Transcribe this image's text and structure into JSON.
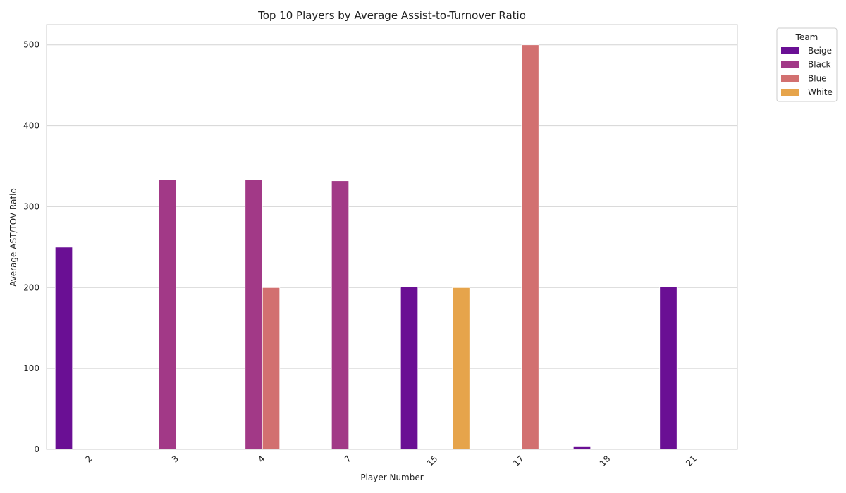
{
  "chart_data": {
    "type": "bar",
    "title": "Top 10 Players by Average Assist-to-Turnover Ratio",
    "xlabel": "Player Number",
    "ylabel": "Average AST/TOV Ratio",
    "categories": [
      "2",
      "3",
      "4",
      "7",
      "15",
      "17",
      "18",
      "21"
    ],
    "ylim": [
      0,
      525
    ],
    "yticks": [
      0,
      100,
      200,
      300,
      400,
      500
    ],
    "grid": true,
    "legend": {
      "title": "Team",
      "placement": "outside-top-right"
    },
    "series": [
      {
        "name": "Beige",
        "color": "#6a0f94",
        "values": [
          250,
          null,
          null,
          null,
          201,
          null,
          4,
          201
        ]
      },
      {
        "name": "Black",
        "color": "#a23987",
        "values": [
          null,
          333,
          333,
          332,
          null,
          null,
          null,
          null
        ]
      },
      {
        "name": "Blue",
        "color": "#d27070",
        "values": [
          null,
          null,
          200,
          null,
          null,
          500,
          null,
          null
        ]
      },
      {
        "name": "White",
        "color": "#e6a44b",
        "values": [
          null,
          null,
          null,
          null,
          200,
          null,
          null,
          null
        ]
      }
    ]
  }
}
